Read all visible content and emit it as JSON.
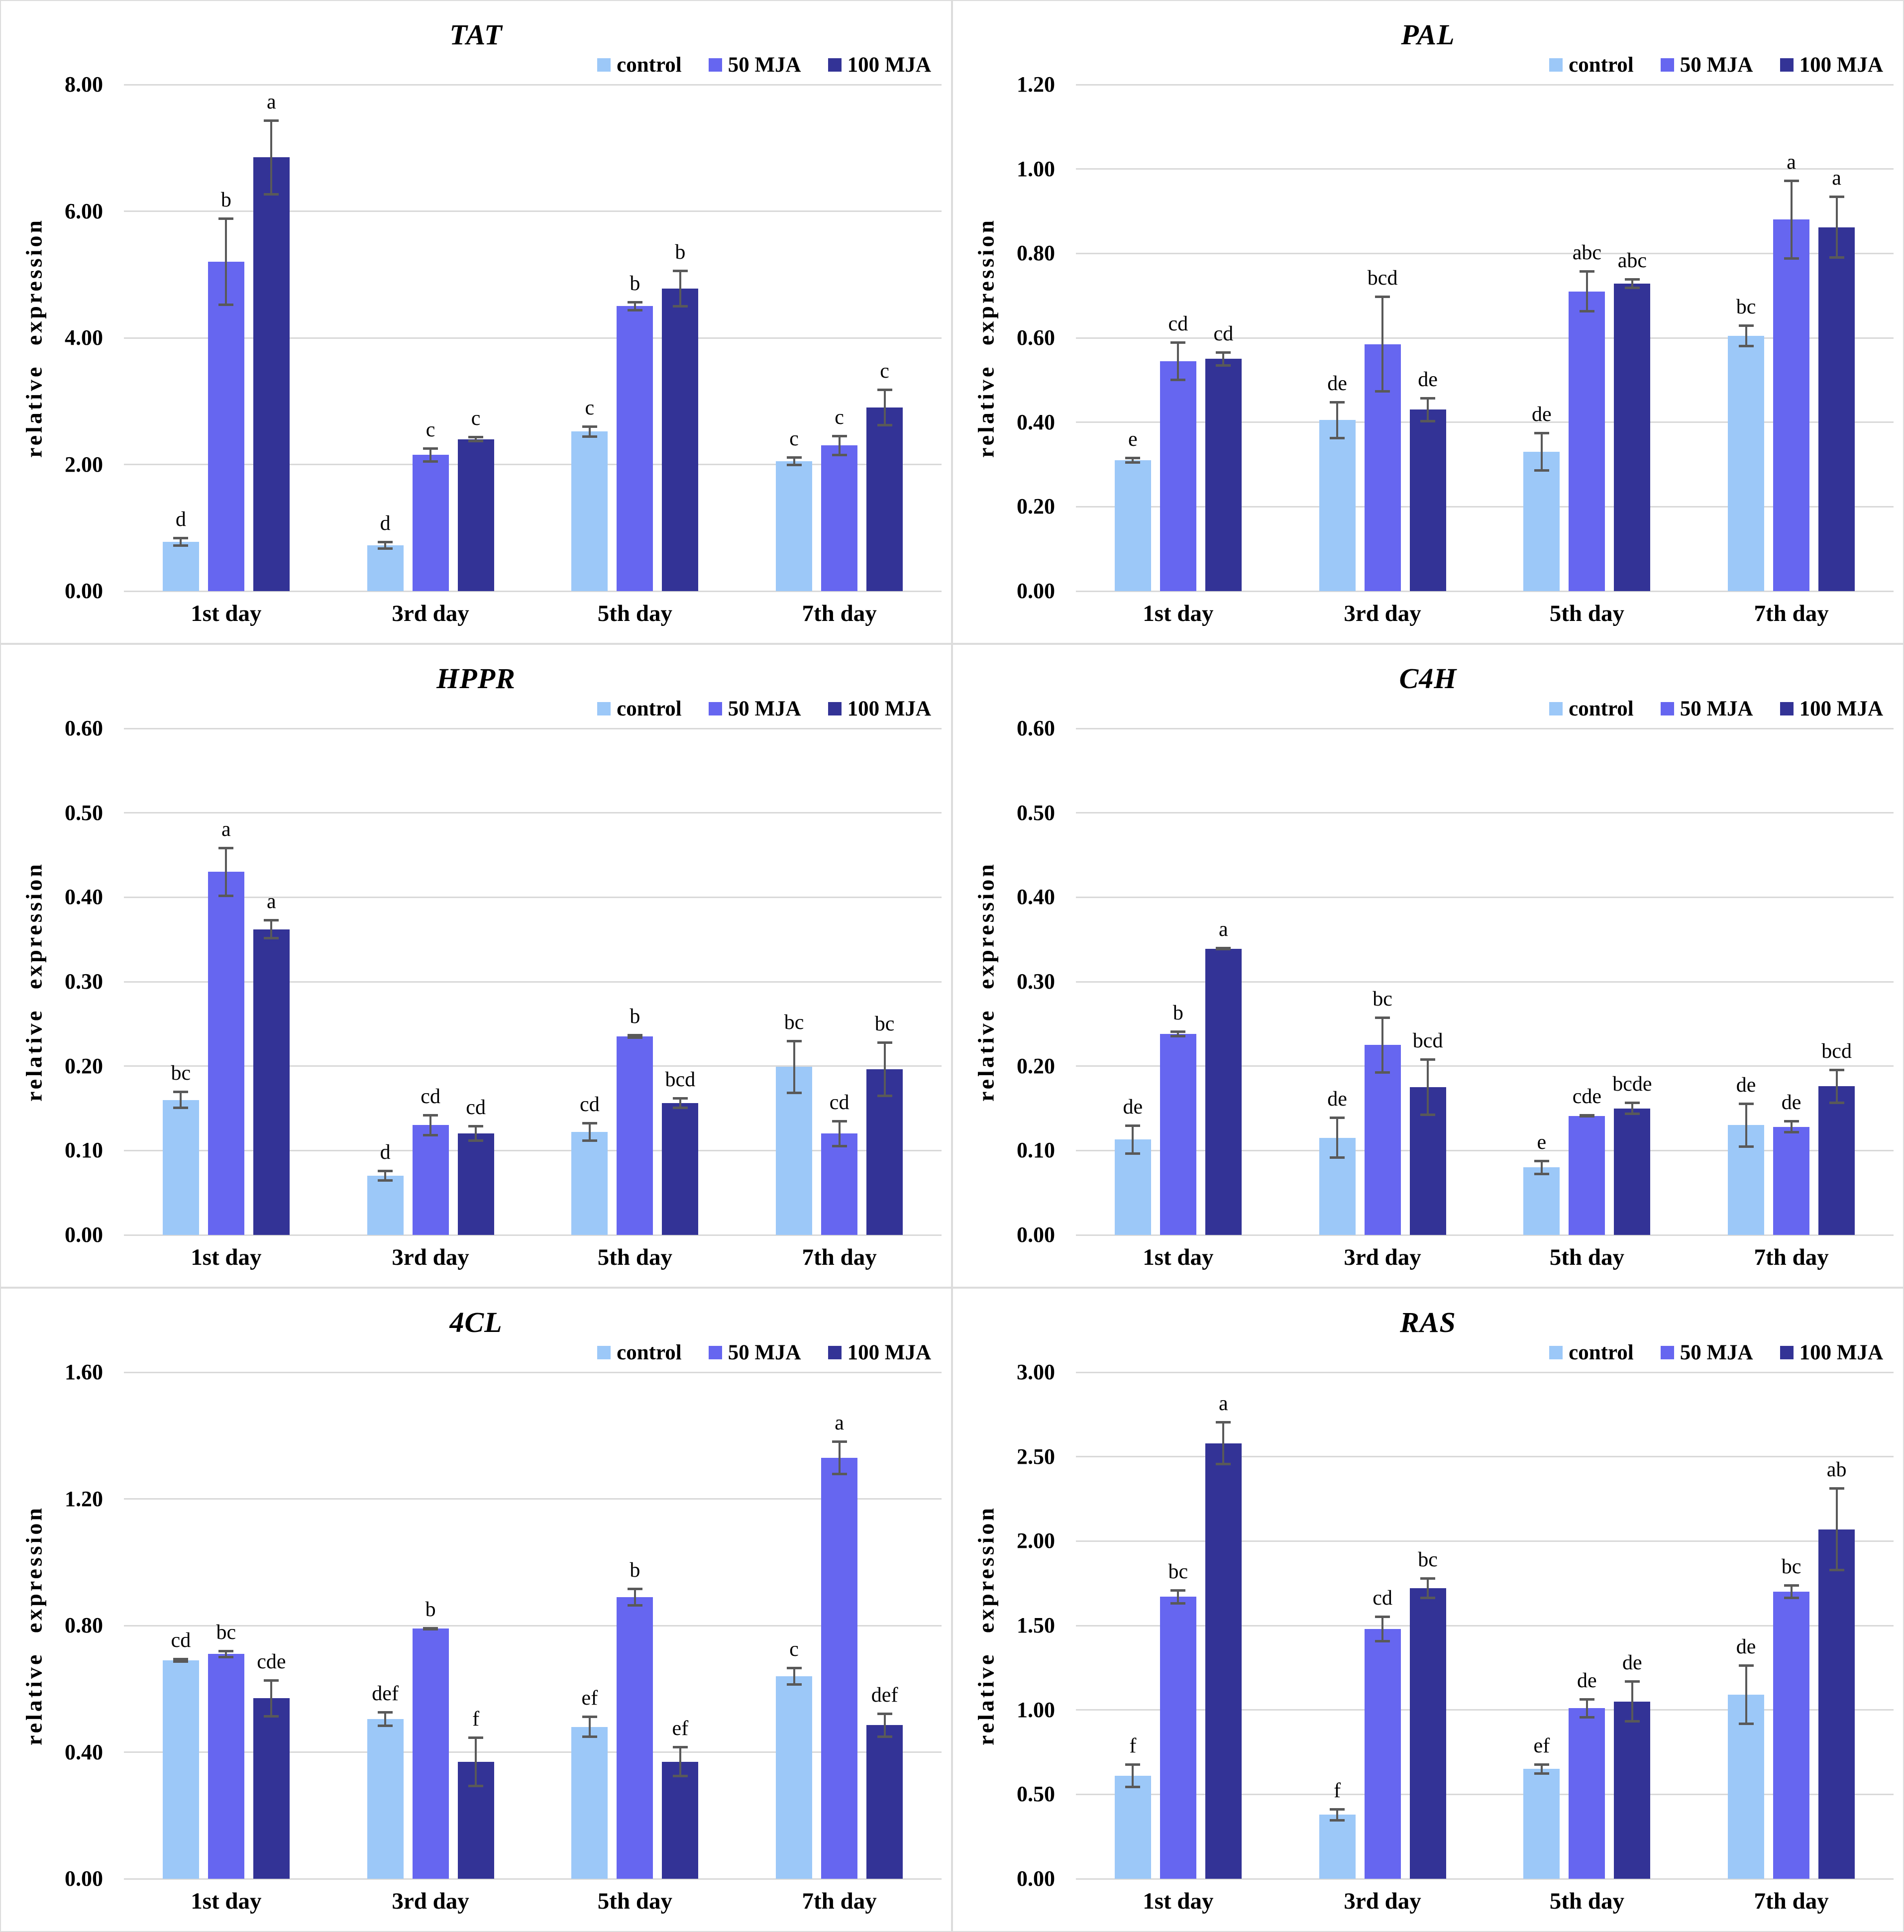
{
  "figure": {
    "ylabel": "relative expression",
    "legend": [
      {
        "key": "control",
        "label": "control"
      },
      {
        "key": "mja50",
        "label": "50 MJA"
      },
      {
        "key": "mja100",
        "label": "100 MJA"
      }
    ],
    "colors": {
      "control": "#9CC8F8",
      "mja50": "#6666F0",
      "mja100": "#333396"
    },
    "error_bar_color": "#595959",
    "gridline_color": "#d9d9d9",
    "text_color": "#000000"
  },
  "chart_data": [
    {
      "type": "bar",
      "title": "TAT",
      "xlabel": "",
      "ylabel": "relative expression",
      "ylim": [
        0,
        8
      ],
      "ystep": 2,
      "grid": true,
      "legend_position": "top-right",
      "categories": [
        "1st day",
        "3rd day",
        "5th day",
        "7th day"
      ],
      "series": [
        {
          "name": "control",
          "values": [
            0.78,
            0.72,
            2.52,
            2.05
          ],
          "errors": [
            0.08,
            0.07,
            0.1,
            0.08
          ],
          "letters": [
            "d",
            "d",
            "c",
            "c"
          ]
        },
        {
          "name": "50 MJA",
          "values": [
            5.2,
            2.15,
            4.5,
            2.3
          ],
          "errors": [
            0.7,
            0.12,
            0.08,
            0.17
          ],
          "letters": [
            "b",
            "c",
            "b",
            "c"
          ]
        },
        {
          "name": "100 MJA",
          "values": [
            6.85,
            2.4,
            4.78,
            2.9
          ],
          "errors": [
            0.6,
            0.05,
            0.3,
            0.3
          ],
          "letters": [
            "a",
            "c",
            "b",
            "c"
          ]
        }
      ]
    },
    {
      "type": "bar",
      "title": "PAL",
      "xlabel": "",
      "ylabel": "relative expression",
      "ylim": [
        0,
        1.2
      ],
      "ystep": 0.2,
      "grid": true,
      "legend_position": "top-right",
      "categories": [
        "1st day",
        "3rd day",
        "5th day",
        "7th day"
      ],
      "series": [
        {
          "name": "control",
          "values": [
            0.31,
            0.405,
            0.33,
            0.605
          ],
          "errors": [
            0.008,
            0.045,
            0.047,
            0.027
          ],
          "letters": [
            "e",
            "de",
            "de",
            "bc"
          ]
        },
        {
          "name": "50 MJA",
          "values": [
            0.545,
            0.585,
            0.71,
            0.88
          ],
          "errors": [
            0.047,
            0.115,
            0.05,
            0.095
          ],
          "letters": [
            "cd",
            "bcd",
            "abc",
            "a"
          ]
        },
        {
          "name": "100 MJA",
          "values": [
            0.55,
            0.43,
            0.728,
            0.862
          ],
          "errors": [
            0.018,
            0.03,
            0.013,
            0.075
          ],
          "letters": [
            "cd",
            "de",
            "abc",
            "a"
          ]
        }
      ]
    },
    {
      "type": "bar",
      "title": "HPPR",
      "xlabel": "",
      "ylabel": "relative expression",
      "ylim": [
        0,
        0.6
      ],
      "ystep": 0.1,
      "grid": true,
      "legend_position": "top-right",
      "categories": [
        "1st day",
        "3rd day",
        "5th day",
        "7th day"
      ],
      "series": [
        {
          "name": "control",
          "values": [
            0.16,
            0.07,
            0.122,
            0.199
          ],
          "errors": [
            0.011,
            0.007,
            0.012,
            0.032
          ],
          "letters": [
            "bc",
            "d",
            "cd",
            "bc"
          ]
        },
        {
          "name": "50 MJA",
          "values": [
            0.43,
            0.13,
            0.235,
            0.12
          ],
          "errors": [
            0.03,
            0.013,
            0.003,
            0.016
          ],
          "letters": [
            "a",
            "cd",
            "b",
            "cd"
          ]
        },
        {
          "name": "100 MJA",
          "values": [
            0.362,
            0.12,
            0.156,
            0.196
          ],
          "errors": [
            0.012,
            0.01,
            0.007,
            0.033
          ],
          "letters": [
            "a",
            "cd",
            "bcd",
            "bc"
          ]
        }
      ]
    },
    {
      "type": "bar",
      "title": "C4H",
      "xlabel": "",
      "ylabel": "relative expression",
      "ylim": [
        0,
        0.6
      ],
      "ystep": 0.1,
      "grid": true,
      "legend_position": "top-right",
      "categories": [
        "1st day",
        "3rd day",
        "5th day",
        "7th day"
      ],
      "series": [
        {
          "name": "control",
          "values": [
            0.113,
            0.115,
            0.08,
            0.13
          ],
          "errors": [
            0.018,
            0.025,
            0.009,
            0.027
          ],
          "letters": [
            "de",
            "de",
            "e",
            "de"
          ]
        },
        {
          "name": "50 MJA",
          "values": [
            0.238,
            0.225,
            0.141,
            0.128
          ],
          "errors": [
            0.004,
            0.034,
            0.002,
            0.008
          ],
          "letters": [
            "b",
            "bc",
            "cde",
            "de"
          ]
        },
        {
          "name": "100 MJA",
          "values": [
            0.339,
            0.175,
            0.15,
            0.176
          ],
          "errors": [
            0.002,
            0.034,
            0.008,
            0.021
          ],
          "letters": [
            "a",
            "bcd",
            "bcde",
            "bcd"
          ]
        }
      ]
    },
    {
      "type": "bar",
      "title": "4CL",
      "xlabel": "",
      "ylabel": "relative expression",
      "ylim": [
        0,
        1.6
      ],
      "ystep": 0.4,
      "grid": true,
      "legend_position": "top-right",
      "categories": [
        "1st day",
        "3rd day",
        "5th day",
        "7th day"
      ],
      "series": [
        {
          "name": "control",
          "values": [
            0.69,
            0.505,
            0.48,
            0.64
          ],
          "errors": [
            0.008,
            0.025,
            0.035,
            0.03
          ],
          "letters": [
            "cd",
            "def",
            "ef",
            "c"
          ]
        },
        {
          "name": "50 MJA",
          "values": [
            0.71,
            0.79,
            0.89,
            1.33
          ],
          "errors": [
            0.013,
            0.006,
            0.03,
            0.055
          ],
          "letters": [
            "bc",
            "b",
            "b",
            "a"
          ]
        },
        {
          "name": "100 MJA",
          "values": [
            0.57,
            0.37,
            0.37,
            0.485
          ],
          "errors": [
            0.06,
            0.08,
            0.05,
            0.04
          ],
          "letters": [
            "cde",
            "f",
            "ef",
            "def"
          ]
        }
      ]
    },
    {
      "type": "bar",
      "title": "RAS",
      "xlabel": "",
      "ylabel": "relative expression",
      "ylim": [
        0,
        3
      ],
      "ystep": 0.5,
      "grid": true,
      "legend_position": "top-right",
      "categories": [
        "1st day",
        "3rd day",
        "5th day",
        "7th day"
      ],
      "series": [
        {
          "name": "control",
          "values": [
            0.61,
            0.38,
            0.65,
            1.09
          ],
          "errors": [
            0.075,
            0.04,
            0.035,
            0.18
          ],
          "letters": [
            "f",
            "f",
            "ef",
            "de"
          ]
        },
        {
          "name": "50 MJA",
          "values": [
            1.67,
            1.48,
            1.01,
            1.7
          ],
          "errors": [
            0.045,
            0.08,
            0.06,
            0.045
          ],
          "letters": [
            "bc",
            "cd",
            "de",
            "bc"
          ]
        },
        {
          "name": "100 MJA",
          "values": [
            2.58,
            1.72,
            1.05,
            2.07
          ],
          "errors": [
            0.13,
            0.065,
            0.125,
            0.25
          ],
          "letters": [
            "a",
            "bc",
            "de",
            "ab"
          ]
        }
      ]
    }
  ]
}
